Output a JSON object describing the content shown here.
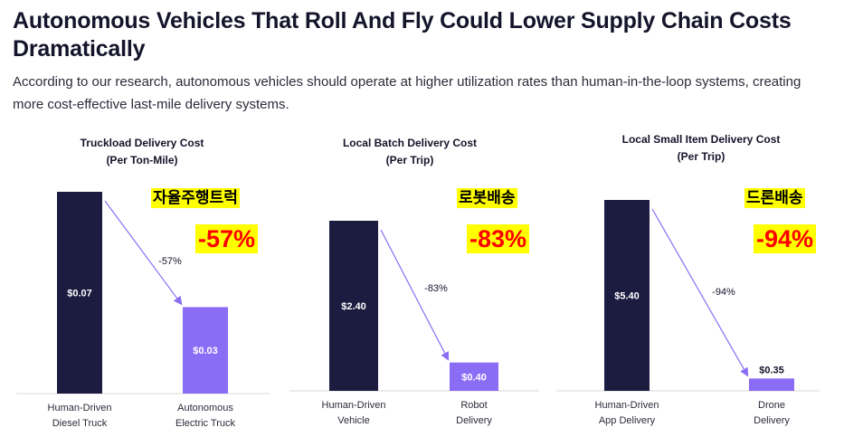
{
  "header": {
    "title": "Autonomous Vehicles That Roll And Fly Could Lower Supply Chain Costs Dramatically",
    "subtitle": "According to our research, autonomous vehicles should operate at higher utilization rates than human-in-the-loop systems, creating more cost-effective last-mile delivery systems."
  },
  "colors": {
    "human_bar": "#1c1b40",
    "auto_bar": "#8b6cf5",
    "arrow": "#8b6cf5",
    "highlight": "#ffff00",
    "highlight_text": "#ff0000"
  },
  "chart_data": [
    {
      "type": "bar",
      "title": "Truckload Delivery Cost",
      "subtitle": "(Per Ton-Mile)",
      "categories": [
        [
          "Human-Driven",
          "Diesel Truck"
        ],
        [
          "Autonomous",
          "Electric Truck"
        ]
      ],
      "values": [
        0.07,
        0.03
      ],
      "value_labels": [
        "$0.07",
        "$0.03"
      ],
      "change_label": "-57%",
      "annotation_korean": "자율주행트럭",
      "annotation_pct": "-57%"
    },
    {
      "type": "bar",
      "title": "Local Batch Delivery Cost",
      "subtitle": "(Per Trip)",
      "categories": [
        [
          "Human-Driven",
          "Vehicle"
        ],
        [
          "Robot",
          "Delivery"
        ]
      ],
      "values": [
        2.4,
        0.4
      ],
      "value_labels": [
        "$2.40",
        "$0.40"
      ],
      "change_label": "-83%",
      "annotation_korean": "로봇배송",
      "annotation_pct": "-83%"
    },
    {
      "type": "bar",
      "title": "Local Small Item Delivery Cost",
      "subtitle": "(Per Trip)",
      "categories": [
        [
          "Human-Driven",
          "App Delivery"
        ],
        [
          "Drone",
          "Delivery"
        ]
      ],
      "values": [
        5.4,
        0.35
      ],
      "value_labels": [
        "$5.40",
        "$0.35"
      ],
      "change_label": "-94%",
      "annotation_korean": "드론배송",
      "annotation_pct": "-94%"
    }
  ]
}
